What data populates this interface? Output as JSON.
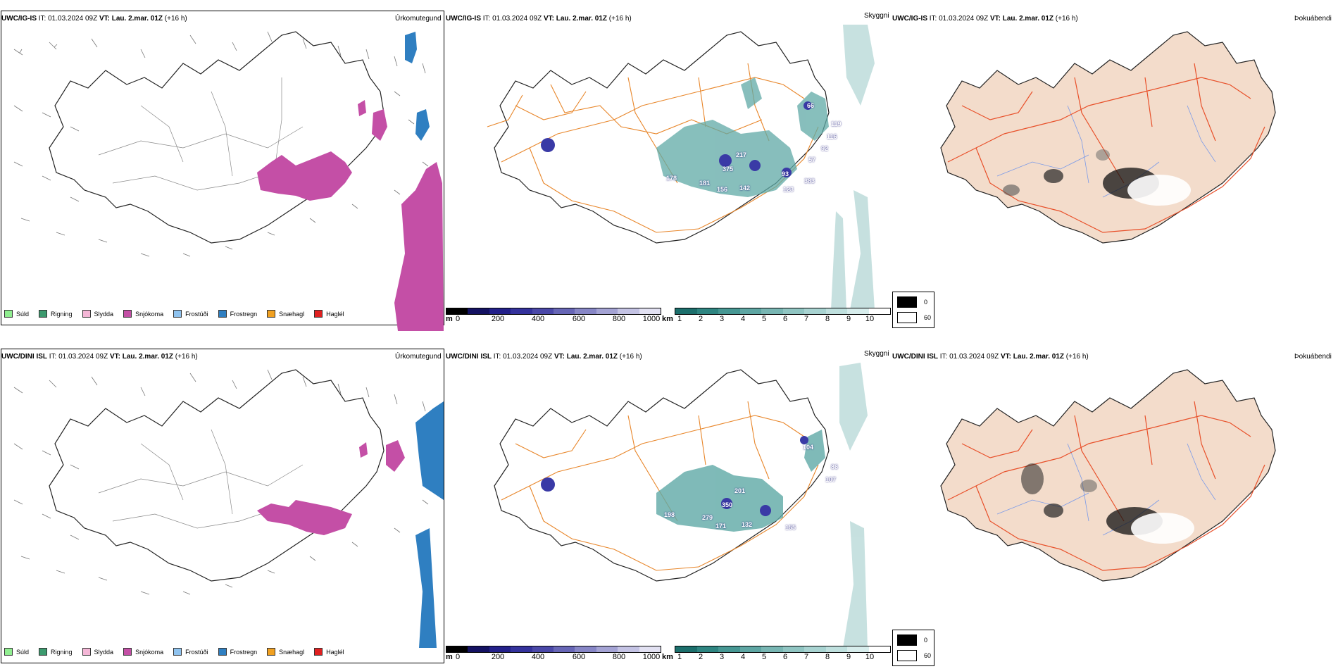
{
  "rows": [
    {
      "model": "UWC/IG-IS",
      "it": "IT: 01.03.2024 09Z",
      "vt_label": "VT:",
      "vt": "Lau. 2.mar. 01Z",
      "lead": "(+16 h)",
      "ceilings": [
        "66",
        "119",
        "116",
        "92",
        "57",
        "217",
        "375",
        "178",
        "181",
        "156",
        "142",
        "93",
        "123",
        "383"
      ]
    },
    {
      "model": "UWC/DINI ISL",
      "it": "IT: 01.03.2024 09Z",
      "vt_label": "VT:",
      "vt": "Lau. 2.mar. 01Z",
      "lead": "(+16 h)",
      "ceilings": [
        "104",
        "86",
        "107",
        "201",
        "350",
        "279",
        "198",
        "171",
        "132",
        "155"
      ]
    }
  ],
  "panel_titles": {
    "precip": "Úrkomutegund",
    "cloud": "Skyggni",
    "fog": "Þokuábendi"
  },
  "precip_legend": [
    {
      "label": "Súld",
      "color": "#90ee90"
    },
    {
      "label": "Rigning",
      "color": "#3c9a6e"
    },
    {
      "label": "Slydda",
      "color": "#f4b6d6"
    },
    {
      "label": "Snjókoma",
      "color": "#c44fa6"
    },
    {
      "label": "Frostúði",
      "color": "#8fc3ef"
    },
    {
      "label": "Frostregn",
      "color": "#2f7fc1"
    },
    {
      "label": "Snæhagl",
      "color": "#f0a020"
    },
    {
      "label": "Haglél",
      "color": "#e02020"
    }
  ],
  "cloud_base_scale": {
    "unit": "m",
    "ticks": [
      "0",
      "200",
      "400",
      "600",
      "800",
      "1000"
    ],
    "colors": [
      "#000000",
      "#141262",
      "#23208a",
      "#34329c",
      "#4a48a8",
      "#6766b6",
      "#8786c6",
      "#a4a3d4",
      "#c4c3e4",
      "#e2e1f2"
    ]
  },
  "visibility_scale": {
    "unit": "km",
    "ticks": [
      "1",
      "2",
      "3",
      "4",
      "5",
      "6",
      "7",
      "8",
      "9",
      "10"
    ],
    "colors": [
      "#1c6f6c",
      "#2e8581",
      "#469793",
      "#5ea6a3",
      "#78b6b3",
      "#90c5c2",
      "#a8d3d1",
      "#bfe0de",
      "#d7edec",
      "#ffffff"
    ]
  },
  "fog_legend": [
    {
      "label": "0",
      "color": "#000000"
    },
    {
      "label": "60",
      "color": "#ffffff"
    }
  ],
  "colors": {
    "snow": "#c44fa6",
    "freezing_rain": "#2f7fc1",
    "roads": "#e8862a",
    "land_fog": "#f3dccb",
    "fog_roads": "#e8502a",
    "rivers": "#7a9ae8",
    "visibility": "#5fa9a6"
  }
}
